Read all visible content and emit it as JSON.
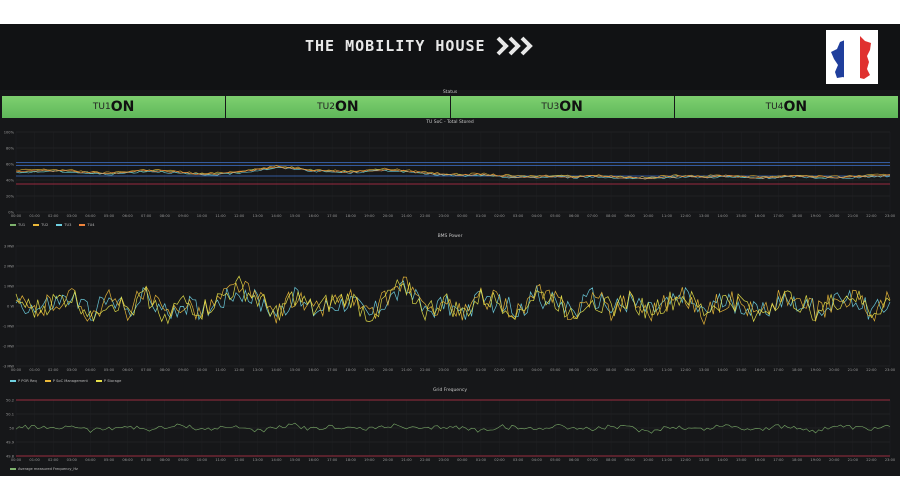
{
  "header": {
    "brand": "THE MOBILITY HOUSE",
    "flag_icon": "france-map-flag-icon"
  },
  "status_panel": {
    "title": "Status",
    "tiles": [
      {
        "label": "TU1",
        "state": "ON"
      },
      {
        "label": "TU2",
        "state": "ON"
      },
      {
        "label": "TU3",
        "state": "ON"
      },
      {
        "label": "TU4",
        "state": "ON"
      }
    ],
    "color": "#73bf69"
  },
  "x_ticks": [
    "00:00",
    "01:00",
    "02:00",
    "03:00",
    "04:00",
    "05:00",
    "06:00",
    "07:00",
    "08:00",
    "09:00",
    "10:00",
    "11:00",
    "12:00",
    "13:00",
    "14:00",
    "15:00",
    "16:00",
    "17:00",
    "18:00",
    "19:00",
    "20:00",
    "21:00",
    "22:00",
    "23:00",
    "00:00",
    "01:00",
    "02:00",
    "03:00",
    "04:00",
    "05:00",
    "06:00",
    "07:00",
    "08:00",
    "09:00",
    "10:00",
    "11:00",
    "12:00",
    "13:00",
    "14:00",
    "15:00",
    "16:00",
    "17:00",
    "18:00",
    "19:00",
    "20:00",
    "21:00",
    "22:00",
    "23:00"
  ],
  "chart_data": [
    {
      "type": "line",
      "title": "TU SoC - Total Stored",
      "y_ticks": [
        "100%",
        "80%",
        "60%",
        "40%",
        "20%",
        "0%"
      ],
      "ylim": [
        0,
        100
      ],
      "thresholds": [
        {
          "value": 62,
          "color": "#3d71c9"
        },
        {
          "value": 58,
          "color": "#3d71c9"
        },
        {
          "value": 45,
          "color": "#3d71c9"
        },
        {
          "value": 35,
          "color": "#c4314b"
        }
      ],
      "series": [
        {
          "name": "TU1",
          "color": "#7eb26d",
          "values": [
            50,
            51,
            52,
            51,
            49,
            48,
            50,
            52,
            51,
            49,
            47,
            48,
            50,
            53,
            56,
            55,
            52,
            51,
            50,
            52,
            53,
            51,
            49,
            47,
            46,
            47,
            45,
            44,
            44,
            45,
            44,
            45,
            44,
            43,
            42,
            44,
            45,
            44,
            45,
            44,
            43,
            44,
            45,
            44,
            43,
            44,
            45,
            46
          ]
        },
        {
          "name": "TU2",
          "color": "#eab839",
          "values": [
            52,
            53,
            53,
            52,
            50,
            49,
            51,
            53,
            52,
            50,
            48,
            49,
            51,
            54,
            57,
            56,
            53,
            52,
            51,
            53,
            54,
            52,
            50,
            48,
            47,
            48,
            46,
            45,
            45,
            46,
            45,
            46,
            45,
            44,
            43,
            45,
            46,
            45,
            46,
            45,
            44,
            45,
            46,
            45,
            44,
            45,
            46,
            47
          ]
        },
        {
          "name": "TU3",
          "color": "#6ed0e0",
          "values": [
            49,
            50,
            51,
            50,
            48,
            47,
            49,
            51,
            50,
            48,
            46,
            47,
            49,
            52,
            55,
            54,
            51,
            50,
            49,
            51,
            52,
            50,
            48,
            46,
            45,
            46,
            44,
            43,
            43,
            44,
            43,
            44,
            43,
            42,
            41,
            43,
            44,
            43,
            44,
            43,
            42,
            43,
            44,
            43,
            42,
            43,
            44,
            45
          ]
        },
        {
          "name": "TU4",
          "color": "#ef843c",
          "values": [
            51,
            52,
            52,
            51,
            49,
            48,
            50,
            52,
            51,
            49,
            47,
            48,
            50,
            53,
            56,
            55,
            52,
            51,
            50,
            52,
            53,
            51,
            49,
            47,
            46,
            47,
            45,
            44,
            44,
            45,
            44,
            45,
            44,
            43,
            42,
            44,
            45,
            44,
            45,
            44,
            43,
            44,
            45,
            44,
            43,
            44,
            45,
            46
          ]
        }
      ]
    },
    {
      "type": "line",
      "title": "BMS Power",
      "y_ticks": [
        "3 MW",
        "2 MW",
        "1 MW",
        "0 W",
        "-1 MW",
        "-2 MW",
        "-3 MW"
      ],
      "ylim": [
        -3,
        3
      ],
      "series": [
        {
          "name": "P POR Req",
          "color": "#6ed0e0",
          "values": [
            0.3,
            -0.2,
            0.1,
            0.4,
            -0.3,
            0.2,
            -0.1,
            0.5,
            -0.4,
            0.1,
            -0.2,
            0.3,
            0.8,
            0.2,
            -0.3,
            0.4,
            -0.2,
            0.1,
            0.3,
            -0.5,
            0.4,
            0.9,
            -0.3,
            0.2,
            -0.4,
            0.3,
            0.1,
            -0.2,
            0.5,
            0.2,
            -0.3,
            0.4,
            -0.1,
            0.3,
            -0.2,
            0.1,
            0.4,
            -0.3,
            0.2,
            0.1,
            -0.4,
            0.3,
            0.2,
            -0.2,
            0.1,
            0.5,
            -0.3,
            0.2
          ]
        },
        {
          "name": "P SoC Management",
          "color": "#eab839",
          "values": [
            0.2,
            -0.3,
            0.2,
            0.5,
            -0.4,
            0.3,
            -0.2,
            0.6,
            -0.5,
            0.2,
            -0.3,
            0.4,
            1.1,
            0.3,
            -0.4,
            0.5,
            -0.3,
            0.2,
            0.4,
            -0.6,
            0.5,
            1.3,
            -0.4,
            0.3,
            -0.5,
            0.4,
            0.2,
            -0.3,
            0.6,
            0.3,
            -0.4,
            0.5,
            -0.2,
            0.4,
            -0.3,
            0.2,
            0.5,
            -0.4,
            0.3,
            0.2,
            -0.5,
            0.4,
            0.3,
            -0.3,
            0.2,
            0.6,
            -0.4,
            0.3
          ]
        },
        {
          "name": "P Storage",
          "color": "#e5e04a",
          "values": [
            0.25,
            -0.25,
            0.15,
            0.45,
            -0.35,
            0.25,
            -0.15,
            0.55,
            -0.45,
            0.15,
            -0.25,
            0.35,
            0.95,
            0.25,
            -0.35,
            0.45,
            -0.25,
            0.15,
            0.35,
            -0.55,
            0.45,
            1.1,
            -0.35,
            0.25,
            -0.45,
            0.35,
            0.15,
            -0.25,
            0.55,
            0.25,
            -0.35,
            0.45,
            -0.15,
            0.35,
            -0.25,
            0.15,
            0.45,
            -0.35,
            0.25,
            0.15,
            -0.45,
            0.35,
            0.25,
            -0.25,
            0.15,
            0.55,
            -0.35,
            0.25
          ]
        }
      ]
    },
    {
      "type": "line",
      "title": "Grid Frequency",
      "y_ticks": [
        "50.2",
        "50.1",
        "50",
        "49.9",
        "49.8"
      ],
      "ylim": [
        49.8,
        50.2
      ],
      "thresholds": [
        {
          "value": 50.2,
          "color": "#c4314b"
        },
        {
          "value": 49.8,
          "color": "#c4314b"
        }
      ],
      "series": [
        {
          "name": "Average measured Frequency_Hz",
          "color": "#7eb26d",
          "values": [
            50.0,
            50.01,
            49.99,
            50.02,
            49.98,
            50.0,
            50.01,
            49.99,
            50.0,
            50.02,
            49.99,
            50.0,
            50.01,
            49.98,
            50.0,
            50.02,
            49.99,
            50.01,
            50.0,
            49.99,
            50.02,
            50.0,
            49.99,
            50.01,
            50.0,
            49.98,
            50.01,
            50.0,
            49.99,
            50.02,
            50.0,
            49.99,
            50.01,
            50.0,
            49.97,
            50.01,
            50.0,
            49.99,
            50.02,
            50.0,
            49.99,
            50.01,
            50.0,
            49.98,
            50.01,
            50.0,
            49.99,
            50.01
          ]
        }
      ]
    }
  ]
}
